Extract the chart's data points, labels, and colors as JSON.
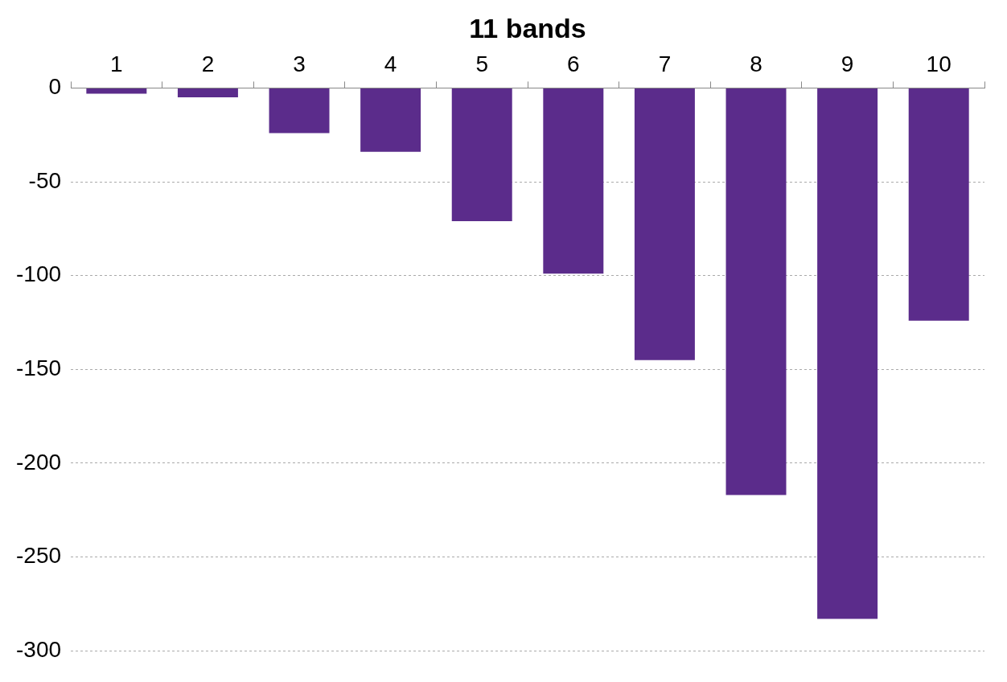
{
  "chart_data": {
    "type": "bar",
    "xlabel": "11 bands",
    "categories": [
      "1",
      "2",
      "3",
      "4",
      "5",
      "6",
      "7",
      "8",
      "9",
      "10"
    ],
    "values": [
      -3,
      -5,
      -24,
      -34,
      -71,
      -99,
      -145,
      -217,
      -283,
      -124
    ],
    "color": "#5b2c8b",
    "ylim": [
      -300,
      0
    ],
    "yticks": [
      0,
      -50,
      -100,
      -150,
      -200,
      -250,
      -300
    ],
    "grid": "y",
    "legend": false
  }
}
